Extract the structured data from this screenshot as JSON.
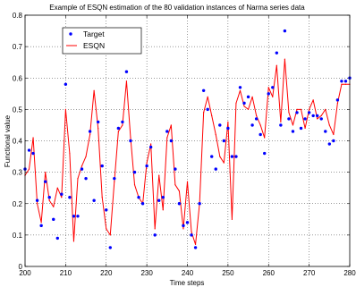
{
  "chart_data": {
    "type": "line",
    "title": "Example of ESQN estimation of the 80 validation instances of Narma series data",
    "xlabel": "Time steps",
    "ylabel": "Functional value",
    "xlim": [
      200,
      280
    ],
    "ylim": [
      0,
      0.8
    ],
    "xticks": [
      "200",
      "210",
      "220",
      "230",
      "240",
      "250",
      "260",
      "270",
      "280"
    ],
    "yticks": [
      "0",
      "0.1",
      "0.2",
      "0.3",
      "0.4",
      "0.5",
      "0.6",
      "0.7",
      "0.8"
    ],
    "grid": true,
    "legend_position": "top-left",
    "x": [
      200,
      201,
      202,
      203,
      204,
      205,
      206,
      207,
      208,
      209,
      210,
      211,
      212,
      213,
      214,
      215,
      216,
      217,
      218,
      219,
      220,
      221,
      222,
      223,
      224,
      225,
      226,
      227,
      228,
      229,
      230,
      231,
      232,
      233,
      234,
      235,
      236,
      237,
      238,
      239,
      240,
      241,
      242,
      243,
      244,
      245,
      246,
      247,
      248,
      249,
      250,
      251,
      252,
      253,
      254,
      255,
      256,
      257,
      258,
      259,
      260,
      261,
      262,
      263,
      264,
      265,
      266,
      267,
      268,
      269,
      270,
      271,
      272,
      273,
      274,
      275,
      276,
      277,
      278,
      279,
      280
    ],
    "series": [
      {
        "name": "Target",
        "style": "markers",
        "color": "#0000ff",
        "values": [
          0.31,
          0.37,
          0.36,
          0.21,
          0.13,
          0.27,
          0.22,
          0.15,
          0.09,
          0.23,
          0.58,
          0.22,
          0.16,
          0.16,
          0.31,
          0.28,
          0.43,
          0.21,
          0.46,
          0.32,
          0.18,
          0.06,
          0.28,
          0.44,
          0.46,
          0.62,
          0.4,
          0.3,
          0.22,
          0.2,
          0.32,
          0.38,
          0.1,
          0.21,
          0.22,
          0.43,
          0.4,
          0.31,
          0.2,
          0.13,
          0.14,
          0.1,
          0.06,
          0.2,
          0.56,
          0.5,
          0.35,
          0.31,
          0.45,
          0.4,
          0.44,
          0.35,
          0.35,
          0.57,
          0.52,
          0.54,
          0.45,
          0.47,
          0.42,
          0.36,
          0.55,
          0.57,
          0.68,
          0.45,
          0.75,
          0.47,
          0.43,
          0.49,
          0.44,
          0.47,
          0.49,
          0.48,
          0.48,
          0.47,
          0.43,
          0.39,
          0.4,
          0.53,
          0.59,
          0.59,
          0.6
        ]
      },
      {
        "name": "ESQN",
        "style": "line",
        "color": "#ff0000",
        "values": [
          0.29,
          0.31,
          0.41,
          0.2,
          0.14,
          0.3,
          0.21,
          0.19,
          0.25,
          0.22,
          0.5,
          0.36,
          0.08,
          0.28,
          0.32,
          0.35,
          0.42,
          0.56,
          0.44,
          0.22,
          0.12,
          0.1,
          0.27,
          0.43,
          0.45,
          0.59,
          0.41,
          0.26,
          0.22,
          0.2,
          0.33,
          0.39,
          0.12,
          0.29,
          0.18,
          0.41,
          0.45,
          0.26,
          0.24,
          0.12,
          0.27,
          0.11,
          0.07,
          0.2,
          0.49,
          0.54,
          0.48,
          0.42,
          0.35,
          0.33,
          0.46,
          0.15,
          0.52,
          0.56,
          0.51,
          0.5,
          0.54,
          0.48,
          0.45,
          0.41,
          0.57,
          0.54,
          0.64,
          0.46,
          0.66,
          0.49,
          0.45,
          0.5,
          0.5,
          0.44,
          0.5,
          0.53,
          0.47,
          0.48,
          0.5,
          0.45,
          0.42,
          0.52,
          0.58,
          0.58,
          0.58
        ]
      }
    ]
  }
}
